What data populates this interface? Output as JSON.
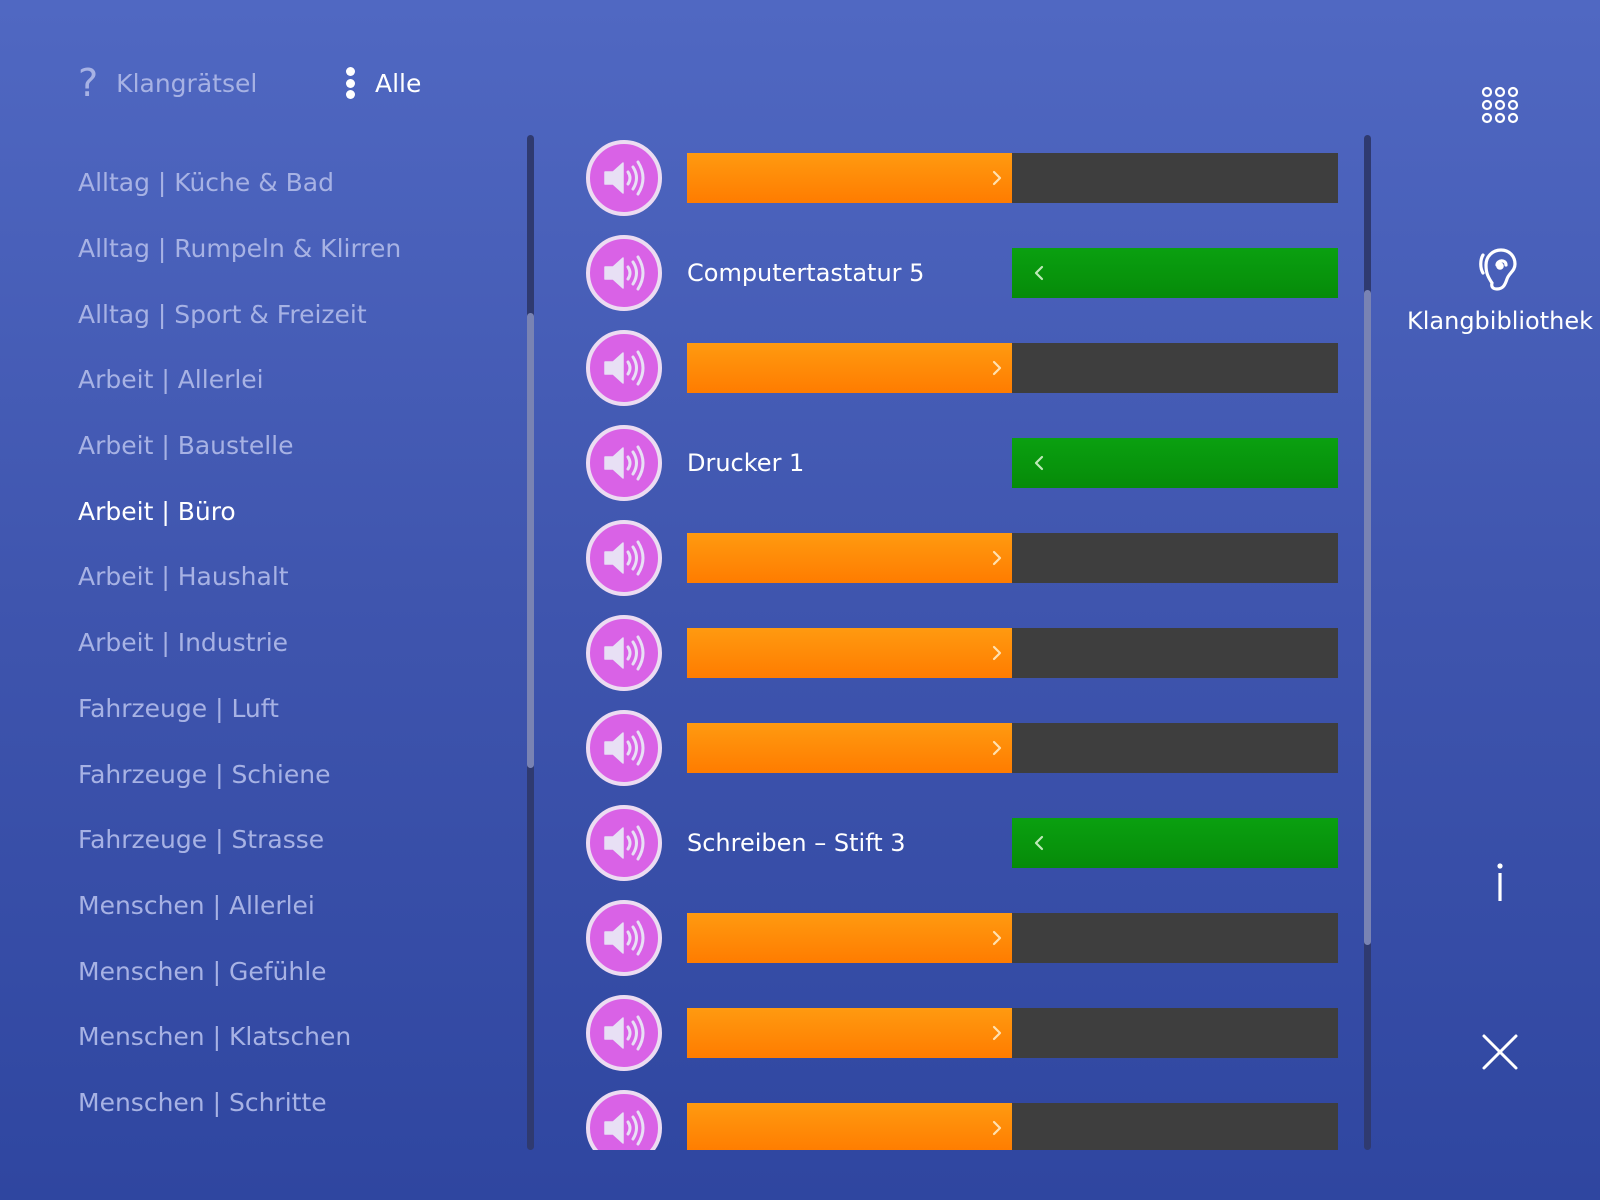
{
  "header": {
    "tabs": [
      {
        "label": "Klangrätsel",
        "icon": "question-mark-icon",
        "active": false
      },
      {
        "label": "Alle",
        "icon": "vertical-dots-icon",
        "active": true
      }
    ]
  },
  "categories": [
    {
      "label": "Alltag | Küche & Bad",
      "active": false
    },
    {
      "label": "Alltag | Rumpeln & Klirren",
      "active": false
    },
    {
      "label": "Alltag | Sport & Freizeit",
      "active": false
    },
    {
      "label": "Arbeit | Allerlei",
      "active": false
    },
    {
      "label": "Arbeit | Baustelle",
      "active": false
    },
    {
      "label": "Arbeit | Büro",
      "active": true
    },
    {
      "label": "Arbeit | Haushalt",
      "active": false
    },
    {
      "label": "Arbeit | Industrie",
      "active": false
    },
    {
      "label": "Fahrzeuge | Luft",
      "active": false
    },
    {
      "label": "Fahrzeuge | Schiene",
      "active": false
    },
    {
      "label": "Fahrzeuge | Strasse",
      "active": false
    },
    {
      "label": "Menschen | Allerlei",
      "active": false
    },
    {
      "label": "Menschen | Gefühle",
      "active": false
    },
    {
      "label": "Menschen | Klatschen",
      "active": false
    },
    {
      "label": "Menschen | Schritte",
      "active": false
    }
  ],
  "sounds": [
    {
      "revealed": false,
      "label": ""
    },
    {
      "revealed": true,
      "label": "Computertastatur 5"
    },
    {
      "revealed": false,
      "label": ""
    },
    {
      "revealed": true,
      "label": "Drucker 1"
    },
    {
      "revealed": false,
      "label": ""
    },
    {
      "revealed": false,
      "label": ""
    },
    {
      "revealed": false,
      "label": ""
    },
    {
      "revealed": true,
      "label": "Schreiben – Stift 3"
    },
    {
      "revealed": false,
      "label": ""
    },
    {
      "revealed": false,
      "label": ""
    },
    {
      "revealed": false,
      "label": ""
    }
  ],
  "sidebar_right": {
    "grid_icon": "grid-icon",
    "library_label": "Klangbibliothek",
    "library_icon": "ear-icon",
    "info_icon": "info-icon",
    "close_icon": "close-icon"
  },
  "colors": {
    "background_top": "#5068c2",
    "background_bottom": "#2f46a0",
    "play_button": "#d962e6",
    "bar_orange": "#ff8a00",
    "bar_dark": "#3e3e3e",
    "bar_green": "#079a0b",
    "text_inactive": "#a7b2e4",
    "text_active": "#ffffff"
  }
}
